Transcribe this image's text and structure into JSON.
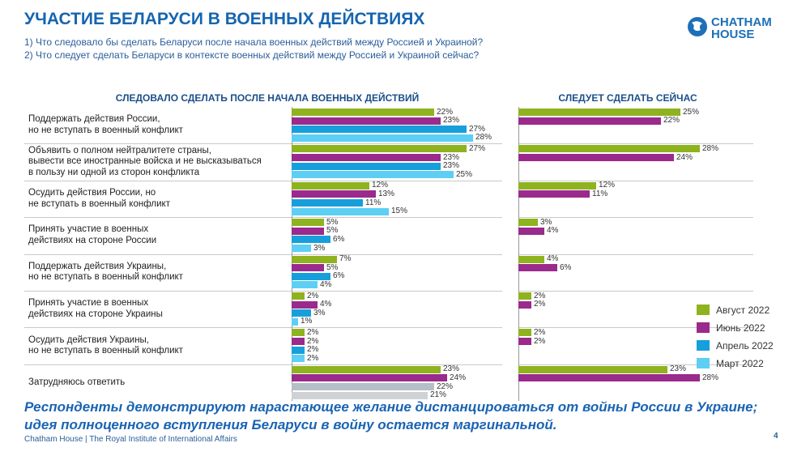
{
  "header": {
    "title": "УЧАСТИЕ БЕЛАРУСИ В ВОЕННЫХ ДЕЙСТВИЯХ",
    "subtitles": [
      "1) Что следовало бы сделать Беларуси после начала военных действий между Россией и Украиной?",
      "2) Что следует сделать Беларуси в контексте военных действий между Россией и Украиной сейчас?"
    ],
    "logo": "CHATHAM\nHOUSE"
  },
  "chart_data": [
    {
      "type": "bar",
      "orientation": "horizontal",
      "title": "СЛЕДОВАЛО СДЕЛАТЬ ПОСЛЕ НАЧАЛА ВОЕННЫХ ДЕЙСТВИЙ",
      "categories": [
        "Поддержать действия России,\nно не вступать в военный конфликт",
        "Объявить о полном нейтралитете страны,\nвывести все иностранные войска и не высказываться\nв пользу ни одной из сторон конфликта",
        "Осудить действия России, но\nне вступать в военный конфликт",
        "Принять участие в военных\nдействиях на стороне России",
        "Поддержать действия Украины,\nно не вступать в военный конфликт",
        "Принять участие в военных\nдействиях на стороне Украины",
        "Осудить действия Украины,\nно не вступать в военный конфликт",
        "Затрудняюсь ответить"
      ],
      "xlim": [
        0,
        30
      ],
      "series": [
        {
          "name": "Август 2022",
          "color": "#8fb21f",
          "values": [
            22,
            27,
            12,
            5,
            7,
            2,
            2,
            23
          ],
          "value_labels": [
            "22%",
            "27%",
            "12%",
            "5%",
            "7%",
            "2%",
            "2%",
            "23%"
          ]
        },
        {
          "name": "Июнь 2022",
          "color": "#9a2a8c",
          "values": [
            23,
            23,
            13,
            5,
            5,
            4,
            2,
            24
          ],
          "value_labels": [
            "23%",
            "23%",
            "13%",
            "5%",
            "5%",
            "4%",
            "2%",
            "24%"
          ]
        },
        {
          "name": "Апрель 2022",
          "color": "#179fdc",
          "colors": [
            "#179fdc",
            "#179fdc",
            "#179fdc",
            "#179fdc",
            "#179fdc",
            "#179fdc",
            "#179fdc",
            "#b4bfc6"
          ],
          "values": [
            27,
            23,
            11,
            6,
            6,
            3,
            2,
            22
          ],
          "value_labels": [
            "27%",
            "23%",
            "11%",
            "6%",
            "6%",
            "3%",
            "2%",
            "22%"
          ]
        },
        {
          "name": "Март 2022",
          "color": "#5dcff4",
          "colors": [
            "#5dcff4",
            "#5dcff4",
            "#5dcff4",
            "#5dcff4",
            "#5dcff4",
            "#5dcff4",
            "#5dcff4",
            "#cfd2d4"
          ],
          "values": [
            28,
            25,
            15,
            3,
            4,
            1,
            2,
            21
          ],
          "value_labels": [
            "28%",
            "25%",
            "15%",
            "3%",
            "4%",
            "1%",
            "2%",
            "21%"
          ]
        }
      ]
    },
    {
      "type": "bar",
      "orientation": "horizontal",
      "title": "СЛЕДУЕТ СДЕЛАТЬ СЕЙЧАС",
      "xlim": [
        0,
        30
      ],
      "series": [
        {
          "name": "Август 2022",
          "color": "#8fb21f",
          "values": [
            25,
            28,
            12,
            3,
            4,
            2,
            2,
            23
          ],
          "value_labels": [
            "25%",
            "28%",
            "12%",
            "3%",
            "4%",
            "2%",
            "2%",
            "23%"
          ]
        },
        {
          "name": "Июнь 2022",
          "color": "#9a2a8c",
          "values": [
            22,
            24,
            11,
            4,
            6,
            2,
            2,
            28
          ],
          "value_labels": [
            "22%",
            "24%",
            "11%",
            "4%",
            "6%",
            "2%",
            "2%",
            "28%"
          ]
        }
      ]
    }
  ],
  "conclusion": "Респонденты демонстрируют нарастающее желание дистанцироваться от войны России в Украине; идея полноценного вступления Беларуси в войну остается маргинальной.",
  "footer": "Chatham House  |  The Royal Institute of International Affairs",
  "page_number": 4
}
